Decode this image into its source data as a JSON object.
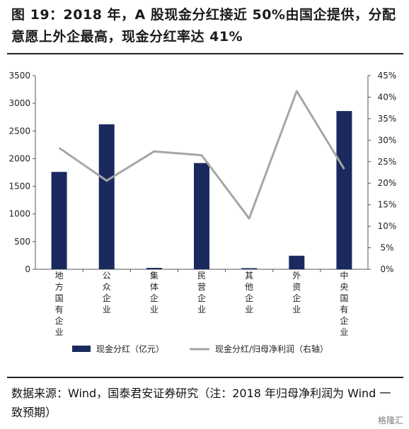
{
  "title": "图 19：2018 年，A 股现金分红接近 50%由国企提供，分配意愿上外企最高，现金分红率达 41%",
  "source": "数据来源：Wind，国泰君安证券研究（注：2018 年归母净利润为 Wind 一致预期）",
  "watermark": "格隆汇",
  "colors": {
    "bar": "#1b2a5e",
    "line": "#a6a6a6"
  },
  "chart_data": {
    "type": "bar",
    "categories": [
      "地方国有企业",
      "公众企业",
      "集体企业",
      "民营企业",
      "其他企业",
      "外资企业",
      "中央国有企业"
    ],
    "series": [
      {
        "name": "现金分红（亿元）",
        "type": "bar",
        "axis": "left",
        "values": [
          1760,
          2620,
          25,
          1920,
          20,
          245,
          2860
        ]
      },
      {
        "name": "现金分红/归母净利润（右轴）",
        "type": "line",
        "axis": "right",
        "values": [
          0.282,
          0.206,
          0.274,
          0.265,
          0.118,
          0.414,
          0.233
        ]
      }
    ],
    "ylim": [
      0,
      3500
    ],
    "y_ticks": [
      "0",
      "500",
      "1000",
      "1500",
      "2000",
      "2500",
      "3000",
      "3500"
    ],
    "y2lim": [
      0,
      0.45
    ],
    "y2_ticks": [
      "0%",
      "5%",
      "10%",
      "15%",
      "20%",
      "25%",
      "30%",
      "35%",
      "40%",
      "45%"
    ],
    "legend_position": "bottom",
    "grid": false
  }
}
